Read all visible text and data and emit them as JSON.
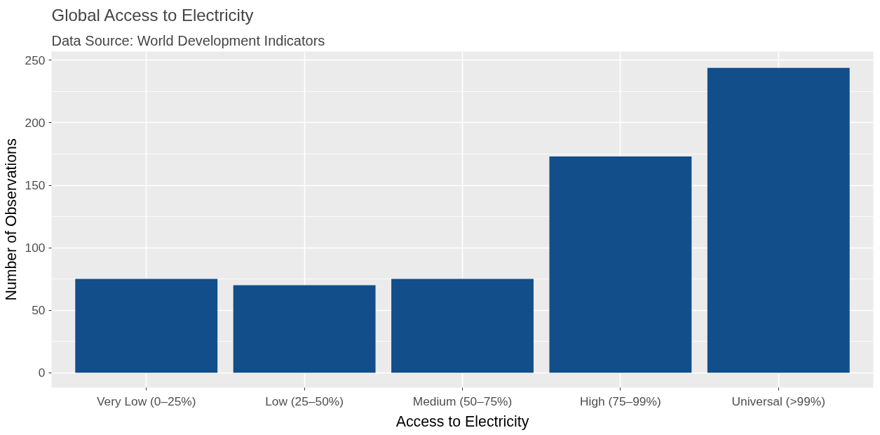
{
  "chart_data": {
    "type": "bar",
    "title": "Global Access to Electricity",
    "subtitle": "Data Source: World Development Indicators",
    "xlabel": "Access to Electricity",
    "ylabel": "Number of Observations",
    "categories": [
      "Very Low (0–25%)",
      "Low (25–50%)",
      "Medium (50–75%)",
      "High (75–99%)",
      "Universal (>99%)"
    ],
    "values": [
      75,
      70,
      75,
      173,
      244
    ],
    "color": "#114e8a",
    "ylim": [
      -12,
      257
    ],
    "yticks": [
      0,
      50,
      100,
      150,
      200,
      250
    ],
    "grid": true
  }
}
